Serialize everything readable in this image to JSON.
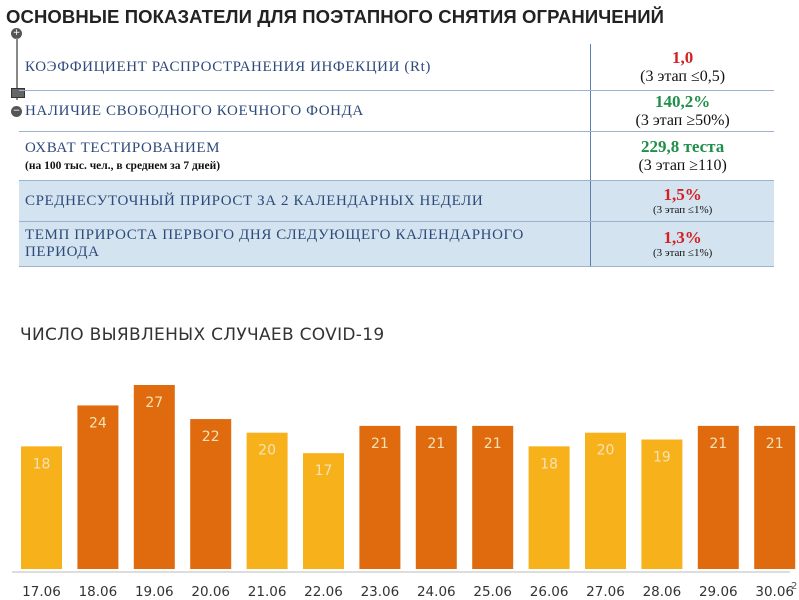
{
  "header": {
    "title": "ОСНОВНЫЕ ПОКАЗАТЕЛИ ДЛЯ ПОЭТАПНОГО СНЯТИЯ ОГРАНИЧЕНИЙ"
  },
  "indicators": [
    {
      "label": "КОЭФФИЦИЕНТ РАСПРОСТРАНЕНИЯ ИНФЕКЦИИ (Rt)",
      "sub": "",
      "value": "1,0",
      "value_color": "#d42020",
      "note": "(3 этап ≤0,5)"
    },
    {
      "label": "НАЛИЧИЕ СВОБОДНОГО КОЕЧНОГО ФОНДА",
      "sub": "",
      "value": "140,2%",
      "value_color": "#1f8f4a",
      "note": "(3 этап ≥50%)"
    },
    {
      "label": "ОХВАТ ТЕСТИРОВАНИЕМ",
      "sub": "(на 100 тыс. чел., в среднем за 7 дней)",
      "value": "229,8 теста",
      "value_color": "#1f8f4a",
      "note": "(3 этап ≥110)"
    },
    {
      "label": "СРЕДНЕСУТОЧНЫЙ ПРИРОСТ ЗА 2 КАЛЕНДАРНЫХ НЕДЕЛИ",
      "sub": "",
      "value": "1,5%",
      "value_color": "#d42020",
      "note": "(3 этап ≤1%)"
    },
    {
      "label": "ТЕМП ПРИРОСТА  ПЕРВОГО ДНЯ СЛЕДУЮЩЕГО КАЛЕНДАРНОГО ПЕРИОДА",
      "sub": "",
      "value": "1,3%",
      "value_color": "#d42020",
      "note": "(3 этап ≤1%)"
    }
  ],
  "colors": {
    "bar_yellow": "#f7b21b",
    "bar_orange": "#e06a0e",
    "label_text": "#f6e2b4"
  },
  "chart_data": {
    "type": "bar",
    "title": "ЧИСЛО ВЫЯВЛЕНЫХ СЛУЧАЕВ COVID-19",
    "categories": [
      "17.06",
      "18.06",
      "19.06",
      "20.06",
      "21.06",
      "22.06",
      "23.06",
      "24.06",
      "25.06",
      "26.06",
      "27.06",
      "28.06",
      "29.06",
      "30.06"
    ],
    "values": [
      18,
      24,
      27,
      22,
      20,
      17,
      21,
      21,
      21,
      18,
      20,
      19,
      21,
      21
    ],
    "bar_colors": [
      "yellow",
      "orange",
      "orange",
      "orange",
      "yellow",
      "yellow",
      "orange",
      "orange",
      "orange",
      "yellow",
      "yellow",
      "yellow",
      "orange",
      "orange"
    ],
    "ylim": [
      0,
      27
    ],
    "grid": false,
    "legend": "none"
  },
  "footer": {
    "page_number": "2"
  }
}
